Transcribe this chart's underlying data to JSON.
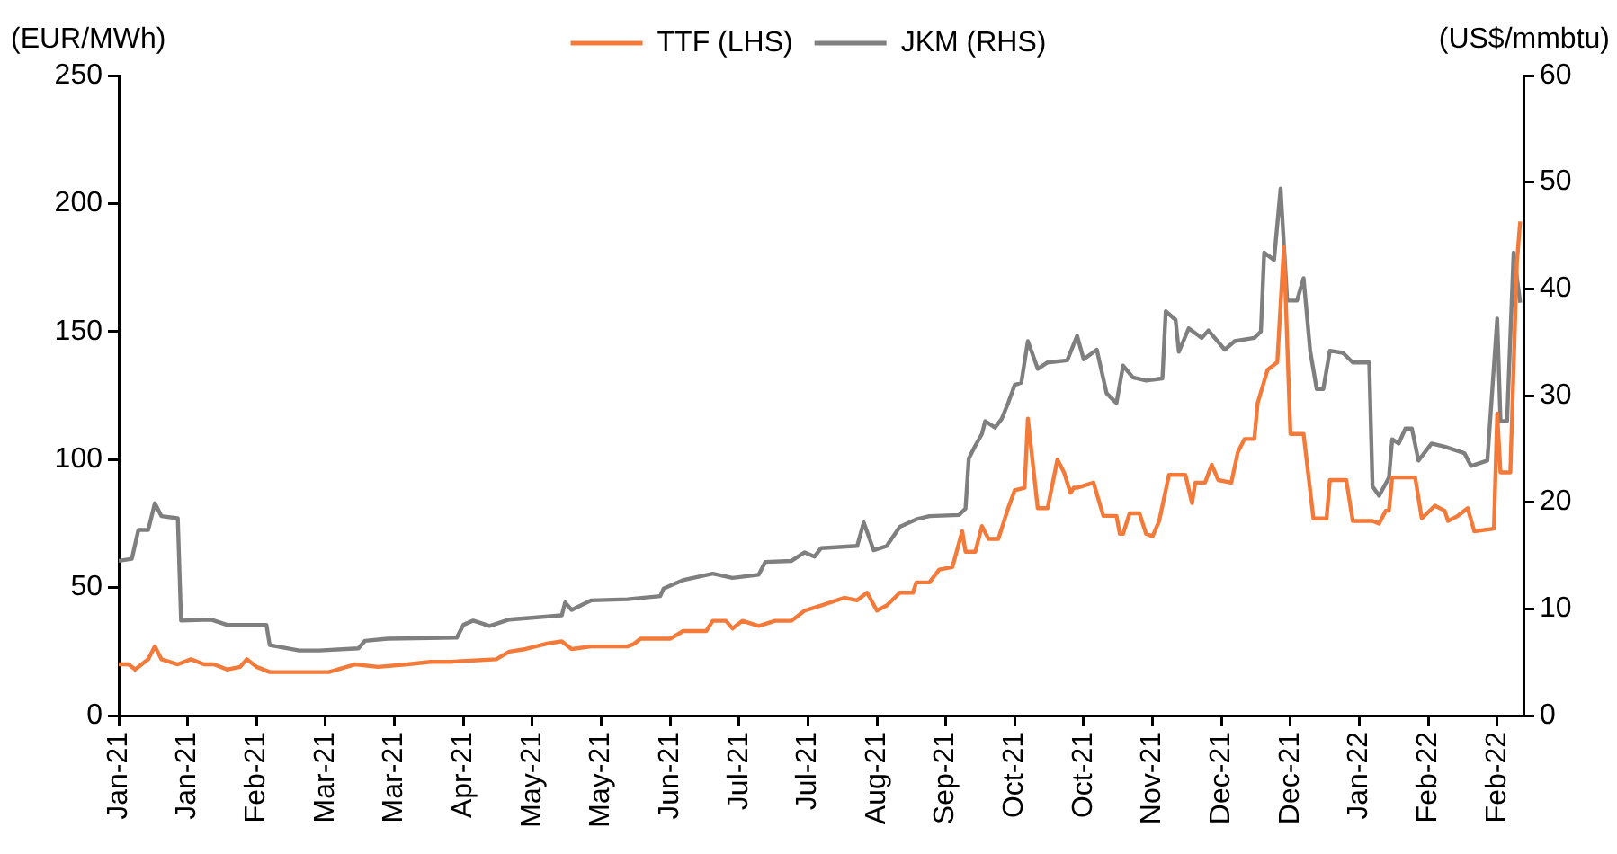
{
  "chart_data": {
    "type": "line",
    "ylabel": "(EUR/MWh)",
    "y2label": "(US$/mmbtu)",
    "xlim": [
      "2021-01-01",
      "2022-03-05"
    ],
    "xticks": [
      {
        "value": "2021-01-01",
        "label": "Jan-21"
      },
      {
        "value": "2021-01-22",
        "label": "Jan-21"
      },
      {
        "value": "2021-02-12",
        "label": "Feb-21"
      },
      {
        "value": "2021-03-05",
        "label": "Mar-21"
      },
      {
        "value": "2021-03-26",
        "label": "Mar-21"
      },
      {
        "value": "2021-04-16",
        "label": "Apr-21"
      },
      {
        "value": "2021-05-07",
        "label": "May-21"
      },
      {
        "value": "2021-05-28",
        "label": "May-21"
      },
      {
        "value": "2021-06-18",
        "label": "Jun-21"
      },
      {
        "value": "2021-07-09",
        "label": "Jul-21"
      },
      {
        "value": "2021-07-30",
        "label": "Jul-21"
      },
      {
        "value": "2021-08-20",
        "label": "Aug-21"
      },
      {
        "value": "2021-09-10",
        "label": "Sep-21"
      },
      {
        "value": "2021-10-01",
        "label": "Oct-21"
      },
      {
        "value": "2021-10-22",
        "label": "Oct-21"
      },
      {
        "value": "2021-11-12",
        "label": "Nov-21"
      },
      {
        "value": "2021-12-03",
        "label": "Dec-21"
      },
      {
        "value": "2021-12-24",
        "label": "Dec-21"
      },
      {
        "value": "2022-01-14",
        "label": "Jan-22"
      },
      {
        "value": "2022-02-04",
        "label": "Feb-22"
      },
      {
        "value": "2022-02-25",
        "label": "Feb-22"
      }
    ],
    "ylim": [
      0,
      250
    ],
    "yticks": [
      0,
      50,
      100,
      150,
      200,
      250
    ],
    "y2lim": [
      0,
      60
    ],
    "y2ticks": [
      0,
      10,
      20,
      30,
      40,
      50,
      60
    ],
    "legend": "top",
    "grid": false,
    "marker": "none",
    "line_style": "solid",
    "series": [
      {
        "name": "TTF (LHS)",
        "color": "#f47a3a",
        "x": [
          "2021-01-01",
          "2021-01-04",
          "2021-01-06",
          "2021-01-10",
          "2021-01-12",
          "2021-01-14",
          "2021-01-19",
          "2021-01-23",
          "2021-01-27",
          "2021-01-30",
          "2021-02-03",
          "2021-02-07",
          "2021-02-09",
          "2021-02-12",
          "2021-02-16",
          "2021-02-24",
          "2021-03-06",
          "2021-03-14",
          "2021-03-21",
          "2021-03-30",
          "2021-04-06",
          "2021-04-12",
          "2021-04-26",
          "2021-04-30",
          "2021-05-05",
          "2021-05-11",
          "2021-05-16",
          "2021-05-19",
          "2021-05-25",
          "2021-06-05",
          "2021-06-07",
          "2021-06-09",
          "2021-06-18",
          "2021-06-22",
          "2021-06-29",
          "2021-07-01",
          "2021-07-05",
          "2021-07-07",
          "2021-07-10",
          "2021-07-15",
          "2021-07-20",
          "2021-07-25",
          "2021-07-29",
          "2021-08-03",
          "2021-08-10",
          "2021-08-14",
          "2021-08-17",
          "2021-08-20",
          "2021-08-23",
          "2021-08-27",
          "2021-08-31",
          "2021-09-01",
          "2021-09-05",
          "2021-09-08",
          "2021-09-12",
          "2021-09-15",
          "2021-09-16",
          "2021-09-19",
          "2021-09-21",
          "2021-09-23",
          "2021-09-26",
          "2021-09-29",
          "2021-10-01",
          "2021-10-04",
          "2021-10-05",
          "2021-10-08",
          "2021-10-11",
          "2021-10-14",
          "2021-10-16",
          "2021-10-18",
          "2021-10-19",
          "2021-10-20",
          "2021-10-25",
          "2021-10-28",
          "2021-11-01",
          "2021-11-02",
          "2021-11-03",
          "2021-11-05",
          "2021-11-08",
          "2021-11-10",
          "2021-11-12",
          "2021-11-14",
          "2021-11-17",
          "2021-11-22",
          "2021-11-24",
          "2021-11-25",
          "2021-11-28",
          "2021-11-30",
          "2021-12-02",
          "2021-12-06",
          "2021-12-08",
          "2021-12-10",
          "2021-12-13",
          "2021-12-14",
          "2021-12-17",
          "2021-12-20",
          "2021-12-22",
          "2021-12-24",
          "2021-12-28",
          "2021-12-31",
          "2022-01-04",
          "2022-01-05",
          "2022-01-10",
          "2022-01-12",
          "2022-01-18",
          "2022-01-20",
          "2022-01-22",
          "2022-01-23",
          "2022-01-24",
          "2022-01-31",
          "2022-02-02",
          "2022-02-06",
          "2022-02-09",
          "2022-02-10",
          "2022-02-13",
          "2022-02-16",
          "2022-02-18",
          "2022-02-24",
          "2022-02-25",
          "2022-02-26",
          "2022-03-01",
          "2022-03-03",
          "2022-03-04"
        ],
        "values": [
          20,
          20,
          18,
          22,
          27,
          22,
          20,
          22,
          20,
          20,
          18,
          19,
          22,
          19,
          17,
          17,
          17,
          20,
          19,
          20,
          21,
          21,
          22,
          25,
          26,
          28,
          29,
          26,
          27,
          27,
          28,
          30,
          30,
          33,
          33,
          37,
          37,
          34,
          37,
          35,
          37,
          37,
          41,
          43,
          46,
          45,
          48,
          41,
          43,
          48,
          48,
          52,
          52,
          57,
          58,
          72,
          64,
          64,
          74,
          69,
          69,
          81,
          88,
          89,
          116,
          81,
          81,
          100,
          95,
          87,
          89,
          89,
          91,
          78,
          78,
          71,
          71,
          79,
          79,
          71,
          70,
          76,
          94,
          94,
          83,
          91,
          91,
          98,
          92,
          91,
          103,
          108,
          108,
          122,
          135,
          138,
          183,
          110,
          110,
          77,
          77,
          92,
          92,
          76,
          76,
          75,
          80,
          80,
          93,
          93,
          77,
          82,
          80,
          76,
          78,
          81,
          72,
          73,
          118,
          95,
          95,
          177,
          193
        ]
      },
      {
        "name": "JKM (RHS)",
        "color": "#7f7f7f",
        "axis": "y2",
        "x": [
          "2021-01-01",
          "2021-01-05",
          "2021-01-07",
          "2021-01-10",
          "2021-01-12",
          "2021-01-14",
          "2021-01-19",
          "2021-01-20",
          "2021-01-29",
          "2021-02-03",
          "2021-02-15",
          "2021-02-16",
          "2021-02-25",
          "2021-03-03",
          "2021-03-15",
          "2021-03-17",
          "2021-03-24",
          "2021-04-14",
          "2021-04-16",
          "2021-04-19",
          "2021-04-24",
          "2021-04-30",
          "2021-05-16",
          "2021-05-17",
          "2021-05-19",
          "2021-05-25",
          "2021-06-05",
          "2021-06-15",
          "2021-06-16",
          "2021-06-22",
          "2021-07-01",
          "2021-07-07",
          "2021-07-15",
          "2021-07-17",
          "2021-07-25",
          "2021-07-29",
          "2021-08-01",
          "2021-08-03",
          "2021-08-14",
          "2021-08-16",
          "2021-08-19",
          "2021-08-23",
          "2021-08-27",
          "2021-09-01",
          "2021-09-05",
          "2021-09-14",
          "2021-09-16",
          "2021-09-17",
          "2021-09-19",
          "2021-09-21",
          "2021-09-22",
          "2021-09-25",
          "2021-09-27",
          "2021-09-29",
          "2021-10-01",
          "2021-10-03",
          "2021-10-05",
          "2021-10-08",
          "2021-10-11",
          "2021-10-17",
          "2021-10-20",
          "2021-10-22",
          "2021-10-26",
          "2021-10-29",
          "2021-11-01",
          "2021-11-03",
          "2021-11-06",
          "2021-11-10",
          "2021-11-15",
          "2021-11-16",
          "2021-11-19",
          "2021-11-20",
          "2021-11-23",
          "2021-11-27",
          "2021-11-29",
          "2021-12-04",
          "2021-12-07",
          "2021-12-13",
          "2021-12-15",
          "2021-12-16",
          "2021-12-19",
          "2021-12-21",
          "2021-12-23",
          "2021-12-26",
          "2021-12-28",
          "2021-12-30",
          "2022-01-01",
          "2022-01-03",
          "2022-01-05",
          "2022-01-09",
          "2022-01-12",
          "2022-01-17",
          "2022-01-18",
          "2022-01-20",
          "2022-01-23",
          "2022-01-24",
          "2022-01-26",
          "2022-01-28",
          "2022-01-30",
          "2022-02-01",
          "2022-02-05",
          "2022-02-09",
          "2022-02-15",
          "2022-02-17",
          "2022-02-22",
          "2022-02-25",
          "2022-02-26",
          "2022-02-28",
          "2022-03-02",
          "2022-03-04"
        ],
        "values": [
          14.5,
          14.7,
          17.4,
          17.4,
          19.9,
          18.7,
          18.5,
          8.9,
          9.0,
          8.5,
          8.5,
          6.6,
          6.1,
          6.1,
          6.3,
          7.0,
          7.2,
          7.3,
          8.5,
          8.9,
          8.4,
          9.0,
          9.4,
          10.6,
          9.9,
          10.8,
          10.9,
          11.2,
          11.9,
          12.7,
          13.3,
          12.9,
          13.2,
          14.4,
          14.5,
          15.3,
          14.9,
          15.7,
          15.9,
          18.1,
          15.5,
          15.9,
          17.7,
          18.4,
          18.7,
          18.8,
          19.4,
          24.1,
          25.3,
          26.4,
          27.6,
          27.0,
          27.8,
          29.3,
          31.0,
          31.2,
          35.1,
          32.5,
          33.1,
          33.3,
          35.6,
          33.4,
          34.3,
          30.2,
          29.3,
          32.8,
          31.7,
          31.4,
          31.6,
          37.9,
          37.1,
          34.1,
          36.3,
          35.4,
          36.1,
          34.3,
          35.1,
          35.4,
          36.0,
          43.4,
          42.7,
          49.4,
          38.9,
          38.9,
          41.0,
          34.2,
          30.6,
          30.6,
          34.2,
          34.0,
          33.1,
          33.1,
          21.5,
          20.6,
          22.3,
          25.9,
          25.5,
          26.9,
          26.9,
          23.9,
          25.5,
          25.2,
          24.6,
          23.4,
          23.9,
          37.2,
          27.6,
          27.6,
          43.4,
          38.7
        ]
      }
    ]
  }
}
